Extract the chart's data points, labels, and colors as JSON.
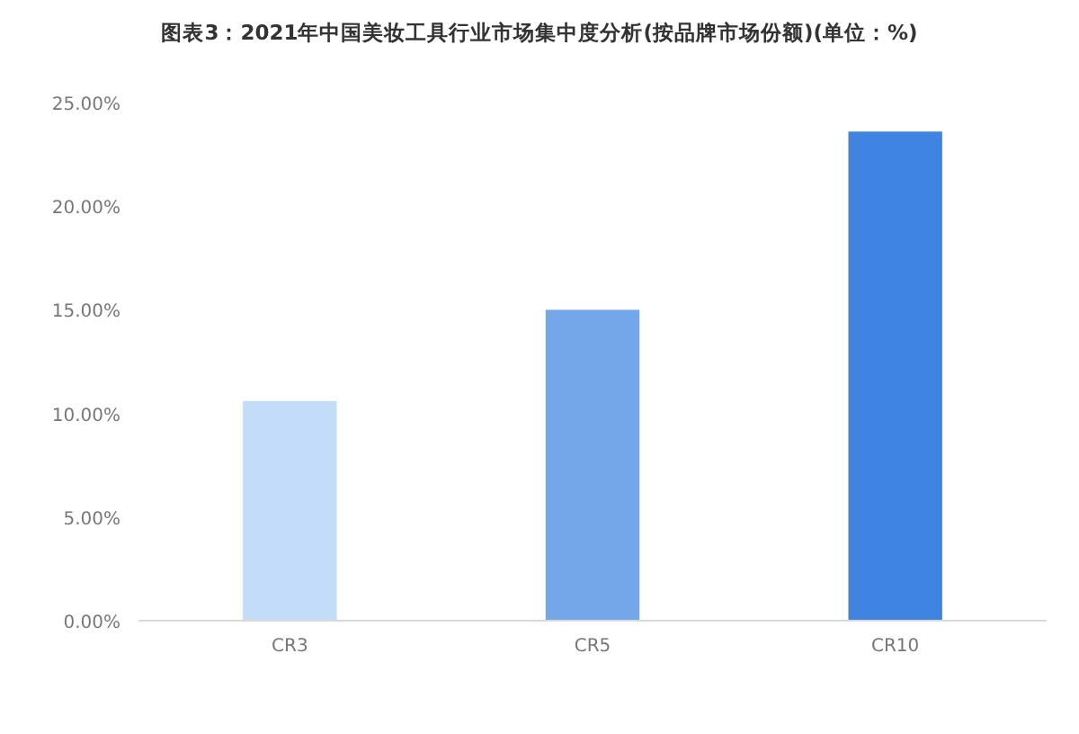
{
  "chart_data": {
    "type": "bar",
    "title": "图表3：2021年中国美妆工具行业市场集中度分析(按品牌市场份额)(单位：%)",
    "categories": [
      "CR3",
      "CR5",
      "CR10"
    ],
    "values": [
      10.6,
      15.0,
      23.6
    ],
    "colors": [
      "#c3dcf9",
      "#74a7ea",
      "#3f84e0"
    ],
    "ylim": [
      0,
      25
    ],
    "yticks": [
      {
        "value": 0,
        "label": "0.00%"
      },
      {
        "value": 5,
        "label": "5.00%"
      },
      {
        "value": 10,
        "label": "10.00%"
      },
      {
        "value": 15,
        "label": "15.00%"
      },
      {
        "value": 20,
        "label": "20.00%"
      },
      {
        "value": 25,
        "label": "25.00%"
      }
    ]
  }
}
